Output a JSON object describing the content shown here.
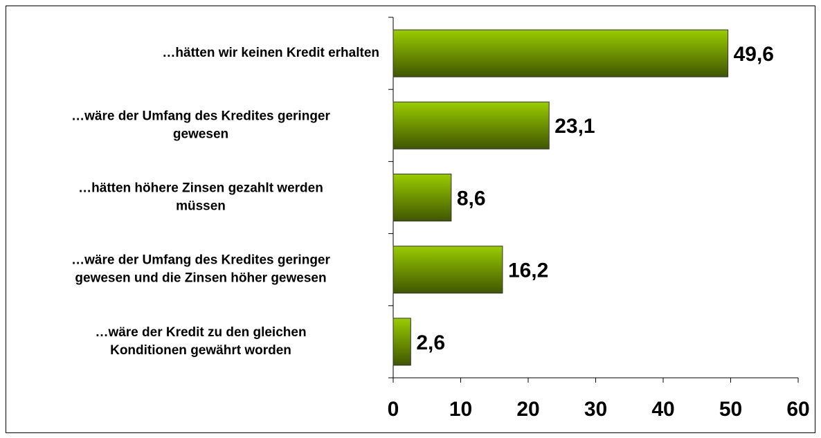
{
  "chart_data": {
    "type": "bar",
    "orientation": "horizontal",
    "categories": [
      [
        "…hätten wir keinen Kredit erhalten"
      ],
      [
        "…wäre der Umfang des Kredites geringer",
        "gewesen"
      ],
      [
        "…hätten höhere Zinsen gezahlt werden",
        "müssen"
      ],
      [
        "…wäre der Umfang des Kredites geringer",
        "gewesen und die Zinsen höher gewesen"
      ],
      [
        "…wäre der Kredit zu den gleichen",
        "Konditionen gewährt worden"
      ]
    ],
    "values": [
      49.6,
      23.1,
      8.6,
      16.2,
      2.6
    ],
    "value_labels": [
      "49,6",
      "23,1",
      "8,6",
      "16,2",
      "2,6"
    ],
    "color": "#99cc00",
    "xlim": [
      0,
      60
    ],
    "xticks": [
      0,
      10,
      20,
      30,
      40,
      50,
      60
    ],
    "grid": false
  }
}
